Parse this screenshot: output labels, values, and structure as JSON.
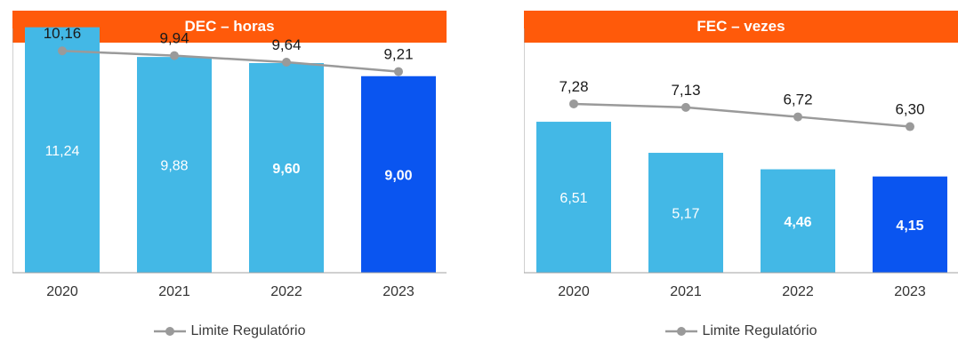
{
  "chart_data": [
    {
      "type": "bar",
      "title": "DEC – horas",
      "categories": [
        "2020",
        "2021",
        "2022",
        "2023"
      ],
      "bar_values": [
        11.24,
        9.88,
        9.6,
        9.0
      ],
      "bar_labels": [
        "11,24",
        "9,88",
        "9,60",
        "9,00"
      ],
      "bar_colors": [
        "#43b8e6",
        "#43b8e6",
        "#43b8e6",
        "#0a55f0"
      ],
      "bold_labels": [
        false,
        false,
        true,
        true
      ],
      "line_series": {
        "name": "Limite Regulatório",
        "values": [
          10.16,
          9.94,
          9.64,
          9.21
        ],
        "labels": [
          "10,16",
          "9,94",
          "9,64",
          "9,21"
        ],
        "color": "#9a9a9a"
      },
      "ylim": [
        0,
        12
      ],
      "grid": false,
      "legend": "bottom-center"
    },
    {
      "type": "bar",
      "title": "FEC – vezes",
      "categories": [
        "2020",
        "2021",
        "2022",
        "2023"
      ],
      "bar_values": [
        6.51,
        5.17,
        4.46,
        4.15
      ],
      "bar_labels": [
        "6,51",
        "5,17",
        "4,46",
        "4,15"
      ],
      "bar_colors": [
        "#43b8e6",
        "#43b8e6",
        "#43b8e6",
        "#0a55f0"
      ],
      "bold_labels": [
        false,
        false,
        true,
        true
      ],
      "line_series": {
        "name": "Limite Regulatório",
        "values": [
          7.28,
          7.13,
          6.72,
          6.3
        ],
        "labels": [
          "7,28",
          "7,13",
          "6,72",
          "6,30"
        ],
        "color": "#9a9a9a"
      },
      "ylim": [
        0,
        11.3
      ],
      "grid": false,
      "legend": "bottom-center"
    }
  ],
  "colors": {
    "header_bg": "#ff5a0a",
    "axis": "#a0a0a0"
  }
}
